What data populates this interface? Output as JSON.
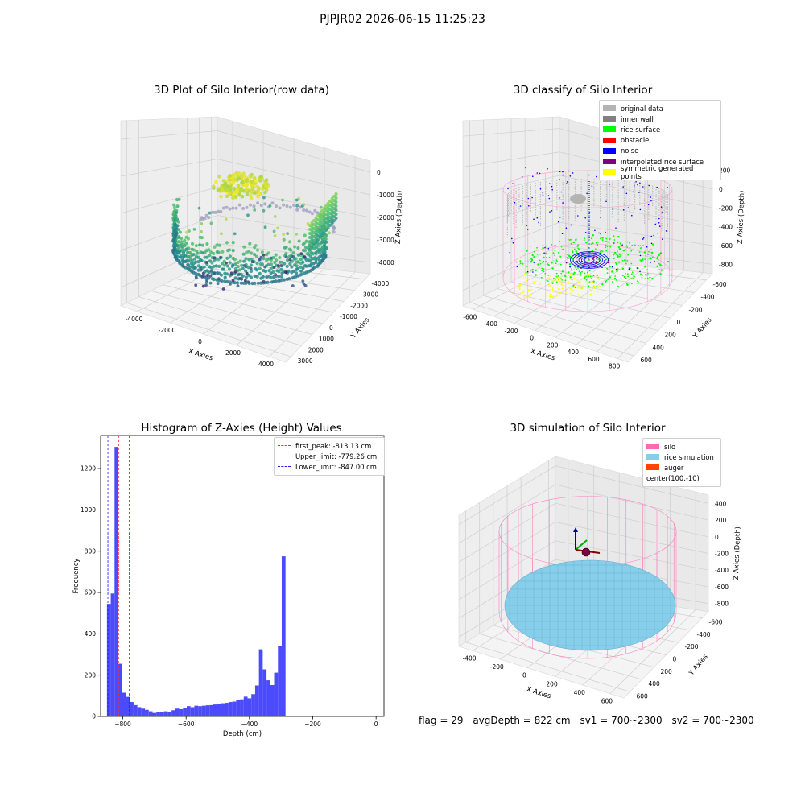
{
  "figure": {
    "suptitle": "PJPJR02 2026-06-15 11:25:23",
    "footer": {
      "flag": "flag = 29",
      "avg_depth": "avgDepth = 822 cm",
      "sv1": "sv1 = 700~2300",
      "sv2": "sv2 = 700~2300"
    }
  },
  "chart_data": [
    {
      "id": "raw",
      "type": "scatter",
      "title": "3D Plot of Silo Interior(row data)",
      "xlabel": "X Axies",
      "ylabel": "Y Axies",
      "zlabel": "Z Axies (Depth)",
      "x_ticks": [
        "-4000",
        "-2000",
        "0",
        "2000",
        "4000"
      ],
      "y_ticks": [
        "-4000",
        "-3000",
        "-2000",
        "-1000",
        "0",
        "1000",
        "2000",
        "3000"
      ],
      "z_ticks": [
        "-4000",
        "-3000",
        "-2000",
        "-1000",
        "0"
      ],
      "xlim": [
        -4500,
        4500
      ],
      "ylim": [
        -4500,
        3500
      ],
      "zlim": [
        -4500,
        0
      ],
      "colormap": "viridis",
      "grid": true
    },
    {
      "id": "classify",
      "type": "scatter",
      "title": "3D classify of Silo Interior",
      "xlabel": "X Axies",
      "ylabel": "Y Axies",
      "zlabel": "Z Axies (Depth)",
      "x_ticks": [
        "-600",
        "-400",
        "-200",
        "0",
        "200",
        "400",
        "600",
        "800"
      ],
      "y_ticks": [
        "-600",
        "-400",
        "-200",
        "0",
        "200",
        "400",
        "600"
      ],
      "z_ticks": [
        "-800",
        "-600",
        "-400",
        "-200",
        "0",
        "200"
      ],
      "legend": {
        "placement": "upper-right",
        "entries": [
          {
            "label": "original data",
            "color": "#b4b4b4"
          },
          {
            "label": "inner wall",
            "color": "#808080"
          },
          {
            "label": "rice surface",
            "color": "#00ff00"
          },
          {
            "label": "obstacle",
            "color": "#ff0000"
          },
          {
            "label": "noise",
            "color": "#0000ff"
          },
          {
            "label": "interpolated rice surface",
            "color": "#800080"
          },
          {
            "label": "symmetric generated points",
            "color": "#ffff00"
          }
        ]
      },
      "grid": true
    },
    {
      "id": "hist",
      "type": "bar",
      "title": "Histogram of Z-Axies (Height) Values",
      "xlabel": "Depth (cm)",
      "ylabel": "Frequency",
      "xlim": [
        -870,
        25
      ],
      "ylim": [
        0,
        1360
      ],
      "x_ticks": [
        -800,
        -600,
        -400,
        -200,
        0
      ],
      "y_ticks": [
        0,
        200,
        400,
        600,
        800,
        1000,
        1200
      ],
      "bin_start": -850,
      "bin_width": 12,
      "values": [
        545,
        595,
        1305,
        255,
        115,
        95,
        70,
        55,
        45,
        38,
        32,
        25,
        17,
        20,
        22,
        25,
        22,
        30,
        38,
        35,
        42,
        50,
        45,
        52,
        50,
        52,
        54,
        55,
        58,
        60,
        64,
        66,
        70,
        72,
        78,
        83,
        96,
        88,
        108,
        150,
        325,
        228,
        175,
        152,
        212,
        340,
        775
      ],
      "bar_color": "#4b4bfb",
      "lines": [
        {
          "label": "first_peak: -813.13 cm",
          "x": -813.13,
          "color": "#ff2a2a"
        },
        {
          "label": "Upper_limit: -779.26 cm",
          "x": -779.26,
          "color": "#1c1cff"
        },
        {
          "label": "Lower_limit: -847.00 cm",
          "x": -847.0,
          "color": "#1c1cff"
        }
      ],
      "legend_placement": "upper-right"
    },
    {
      "id": "sim",
      "type": "scatter",
      "title": "3D simulation of Silo Interior",
      "xlabel": "X Axies",
      "ylabel": "Y Axies",
      "zlabel": "Z Axies (Depth)",
      "x_ticks": [
        "-400",
        "-200",
        "0",
        "200",
        "400",
        "600"
      ],
      "y_ticks": [
        "-600",
        "-400",
        "-200",
        "0",
        "200",
        "400",
        "600"
      ],
      "z_ticks": [
        "-800",
        "-600",
        "-400",
        "-200",
        "0",
        "200",
        "400"
      ],
      "legend": {
        "placement": "upper-right",
        "entries": [
          {
            "label": "silo",
            "color": "#ff69b4"
          },
          {
            "label": "rice simulation",
            "color": "#87ceeb"
          },
          {
            "label": "auger",
            "color": "#ff4500"
          },
          {
            "label": "center(100,-10)",
            "color": ""
          }
        ]
      },
      "grid": true
    }
  ]
}
